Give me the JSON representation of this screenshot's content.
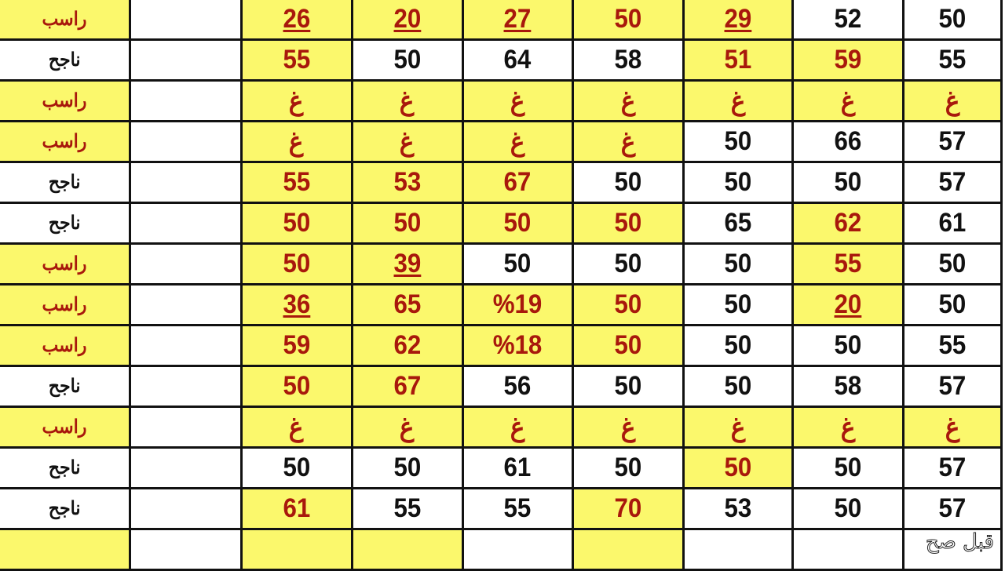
{
  "colors": {
    "highlight": "#fbf86c",
    "highlight_text": "#a8180c",
    "text": "#111111",
    "border": "#111111"
  },
  "watermark": "قبل صح",
  "rows": [
    {
      "status": {
        "text": "راسب",
        "highlight": true
      },
      "cells": [
        {
          "text": "",
          "highlight": false
        },
        {
          "text": "26",
          "highlight": true,
          "underline": true
        },
        {
          "text": "20",
          "highlight": true,
          "underline": true
        },
        {
          "text": "27",
          "highlight": true,
          "underline": true
        },
        {
          "text": "50",
          "highlight": true
        },
        {
          "text": "29",
          "highlight": true,
          "underline": true
        },
        {
          "text": "52",
          "highlight": false
        },
        {
          "text": "50",
          "highlight": false
        }
      ]
    },
    {
      "status": {
        "text": "ناجح",
        "highlight": false
      },
      "cells": [
        {
          "text": "",
          "highlight": false
        },
        {
          "text": "55",
          "highlight": true
        },
        {
          "text": "50",
          "highlight": false
        },
        {
          "text": "64",
          "highlight": false
        },
        {
          "text": "58",
          "highlight": false
        },
        {
          "text": "51",
          "highlight": true
        },
        {
          "text": "59",
          "highlight": true
        },
        {
          "text": "55",
          "highlight": false
        }
      ]
    },
    {
      "status": {
        "text": "راسب",
        "highlight": true
      },
      "cells": [
        {
          "text": "",
          "highlight": false
        },
        {
          "text": "غ",
          "highlight": true
        },
        {
          "text": "غ",
          "highlight": true
        },
        {
          "text": "غ",
          "highlight": true
        },
        {
          "text": "غ",
          "highlight": true
        },
        {
          "text": "غ",
          "highlight": true
        },
        {
          "text": "غ",
          "highlight": true
        },
        {
          "text": "غ",
          "highlight": true
        }
      ]
    },
    {
      "status": {
        "text": "راسب",
        "highlight": true
      },
      "cells": [
        {
          "text": "",
          "highlight": false
        },
        {
          "text": "غ",
          "highlight": true
        },
        {
          "text": "غ",
          "highlight": true
        },
        {
          "text": "غ",
          "highlight": true
        },
        {
          "text": "غ",
          "highlight": true
        },
        {
          "text": "50",
          "highlight": false
        },
        {
          "text": "66",
          "highlight": false
        },
        {
          "text": "57",
          "highlight": false
        }
      ]
    },
    {
      "status": {
        "text": "ناجح",
        "highlight": false
      },
      "cells": [
        {
          "text": "",
          "highlight": false
        },
        {
          "text": "55",
          "highlight": true
        },
        {
          "text": "53",
          "highlight": true
        },
        {
          "text": "67",
          "highlight": true
        },
        {
          "text": "50",
          "highlight": false
        },
        {
          "text": "50",
          "highlight": false
        },
        {
          "text": "50",
          "highlight": false
        },
        {
          "text": "57",
          "highlight": false
        }
      ]
    },
    {
      "status": {
        "text": "ناجح",
        "highlight": false
      },
      "cells": [
        {
          "text": "",
          "highlight": false
        },
        {
          "text": "50",
          "highlight": true
        },
        {
          "text": "50",
          "highlight": true
        },
        {
          "text": "50",
          "highlight": true
        },
        {
          "text": "50",
          "highlight": true
        },
        {
          "text": "65",
          "highlight": false
        },
        {
          "text": "62",
          "highlight": true
        },
        {
          "text": "61",
          "highlight": false
        }
      ]
    },
    {
      "status": {
        "text": "راسب",
        "highlight": true
      },
      "cells": [
        {
          "text": "",
          "highlight": false
        },
        {
          "text": "50",
          "highlight": true
        },
        {
          "text": "39",
          "highlight": true,
          "underline": true
        },
        {
          "text": "50",
          "highlight": false
        },
        {
          "text": "50",
          "highlight": false
        },
        {
          "text": "50",
          "highlight": false
        },
        {
          "text": "55",
          "highlight": true
        },
        {
          "text": "50",
          "highlight": false
        }
      ]
    },
    {
      "status": {
        "text": "راسب",
        "highlight": true
      },
      "cells": [
        {
          "text": "",
          "highlight": false
        },
        {
          "text": "36",
          "highlight": true,
          "underline": true
        },
        {
          "text": "65",
          "highlight": true
        },
        {
          "text": "%19",
          "highlight": true
        },
        {
          "text": "50",
          "highlight": true
        },
        {
          "text": "50",
          "highlight": false
        },
        {
          "text": "20",
          "highlight": true,
          "underline": true
        },
        {
          "text": "50",
          "highlight": false
        }
      ]
    },
    {
      "status": {
        "text": "راسب",
        "highlight": true
      },
      "cells": [
        {
          "text": "",
          "highlight": false
        },
        {
          "text": "59",
          "highlight": true
        },
        {
          "text": "62",
          "highlight": true
        },
        {
          "text": "%18",
          "highlight": true
        },
        {
          "text": "50",
          "highlight": true
        },
        {
          "text": "50",
          "highlight": false
        },
        {
          "text": "50",
          "highlight": false
        },
        {
          "text": "55",
          "highlight": false
        }
      ]
    },
    {
      "status": {
        "text": "ناجح",
        "highlight": false
      },
      "cells": [
        {
          "text": "",
          "highlight": false
        },
        {
          "text": "50",
          "highlight": true
        },
        {
          "text": "67",
          "highlight": true
        },
        {
          "text": "56",
          "highlight": false
        },
        {
          "text": "50",
          "highlight": false
        },
        {
          "text": "50",
          "highlight": false
        },
        {
          "text": "58",
          "highlight": false
        },
        {
          "text": "57",
          "highlight": false
        }
      ]
    },
    {
      "status": {
        "text": "راسب",
        "highlight": true
      },
      "cells": [
        {
          "text": "",
          "highlight": false
        },
        {
          "text": "غ",
          "highlight": true
        },
        {
          "text": "غ",
          "highlight": true
        },
        {
          "text": "غ",
          "highlight": true
        },
        {
          "text": "غ",
          "highlight": true
        },
        {
          "text": "غ",
          "highlight": true
        },
        {
          "text": "غ",
          "highlight": true
        },
        {
          "text": "غ",
          "highlight": true
        }
      ]
    },
    {
      "status": {
        "text": "ناجح",
        "highlight": false
      },
      "cells": [
        {
          "text": "",
          "highlight": false
        },
        {
          "text": "50",
          "highlight": false
        },
        {
          "text": "50",
          "highlight": false
        },
        {
          "text": "61",
          "highlight": false
        },
        {
          "text": "50",
          "highlight": false
        },
        {
          "text": "50",
          "highlight": true
        },
        {
          "text": "50",
          "highlight": false
        },
        {
          "text": "57",
          "highlight": false
        }
      ]
    },
    {
      "status": {
        "text": "ناجح",
        "highlight": false
      },
      "cells": [
        {
          "text": "",
          "highlight": false
        },
        {
          "text": "61",
          "highlight": true
        },
        {
          "text": "55",
          "highlight": false
        },
        {
          "text": "55",
          "highlight": false
        },
        {
          "text": "70",
          "highlight": true
        },
        {
          "text": "53",
          "highlight": false
        },
        {
          "text": "50",
          "highlight": false
        },
        {
          "text": "57",
          "highlight": false
        }
      ]
    },
    {
      "status": {
        "text": "",
        "highlight": true
      },
      "cells": [
        {
          "text": "",
          "highlight": false
        },
        {
          "text": "",
          "highlight": true
        },
        {
          "text": "",
          "highlight": true
        },
        {
          "text": "",
          "highlight": false
        },
        {
          "text": "",
          "highlight": true
        },
        {
          "text": "",
          "highlight": false
        },
        {
          "text": "",
          "highlight": false
        },
        {
          "text": "",
          "highlight": false
        }
      ]
    }
  ]
}
